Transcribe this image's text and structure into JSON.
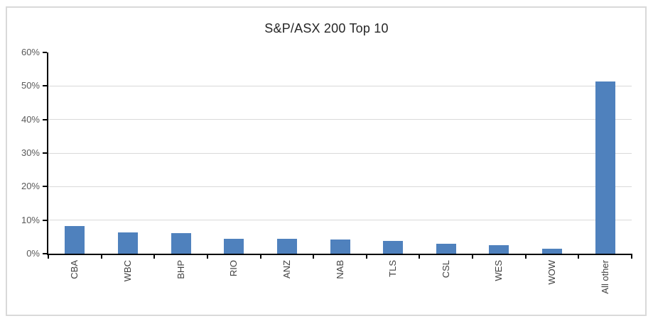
{
  "window": {
    "background_color": "#ffffff",
    "frame_border_color": "#d9d9d9"
  },
  "chart_data": {
    "type": "bar",
    "title": "S&P/ASX 200 Top 10",
    "categories": [
      "CBA",
      "WBC",
      "BHP",
      "RIO",
      "ANZ",
      "NAB",
      "TLS",
      "CSL",
      "WES",
      "WOW",
      "All other"
    ],
    "values": [
      8.2,
      6.4,
      6.2,
      4.5,
      4.4,
      4.2,
      3.9,
      3.0,
      2.5,
      1.4,
      51.4
    ],
    "value_unit": "%",
    "xlabel": "",
    "ylabel": "",
    "ylim": [
      0,
      60
    ],
    "ytick_step": 10,
    "ytick_labels": [
      "0%",
      "10%",
      "20%",
      "30%",
      "40%",
      "50%",
      "60%"
    ],
    "gridline_values": [
      10,
      20,
      30,
      40,
      50
    ],
    "grid": true,
    "legend_position": "none",
    "bar_color": "#4F81BD",
    "gridline_color": "#D9D9D9",
    "axis_color": "#000000",
    "ytick_label_color": "#595959",
    "category_label_color": "#404040",
    "title_color": "#262626"
  }
}
